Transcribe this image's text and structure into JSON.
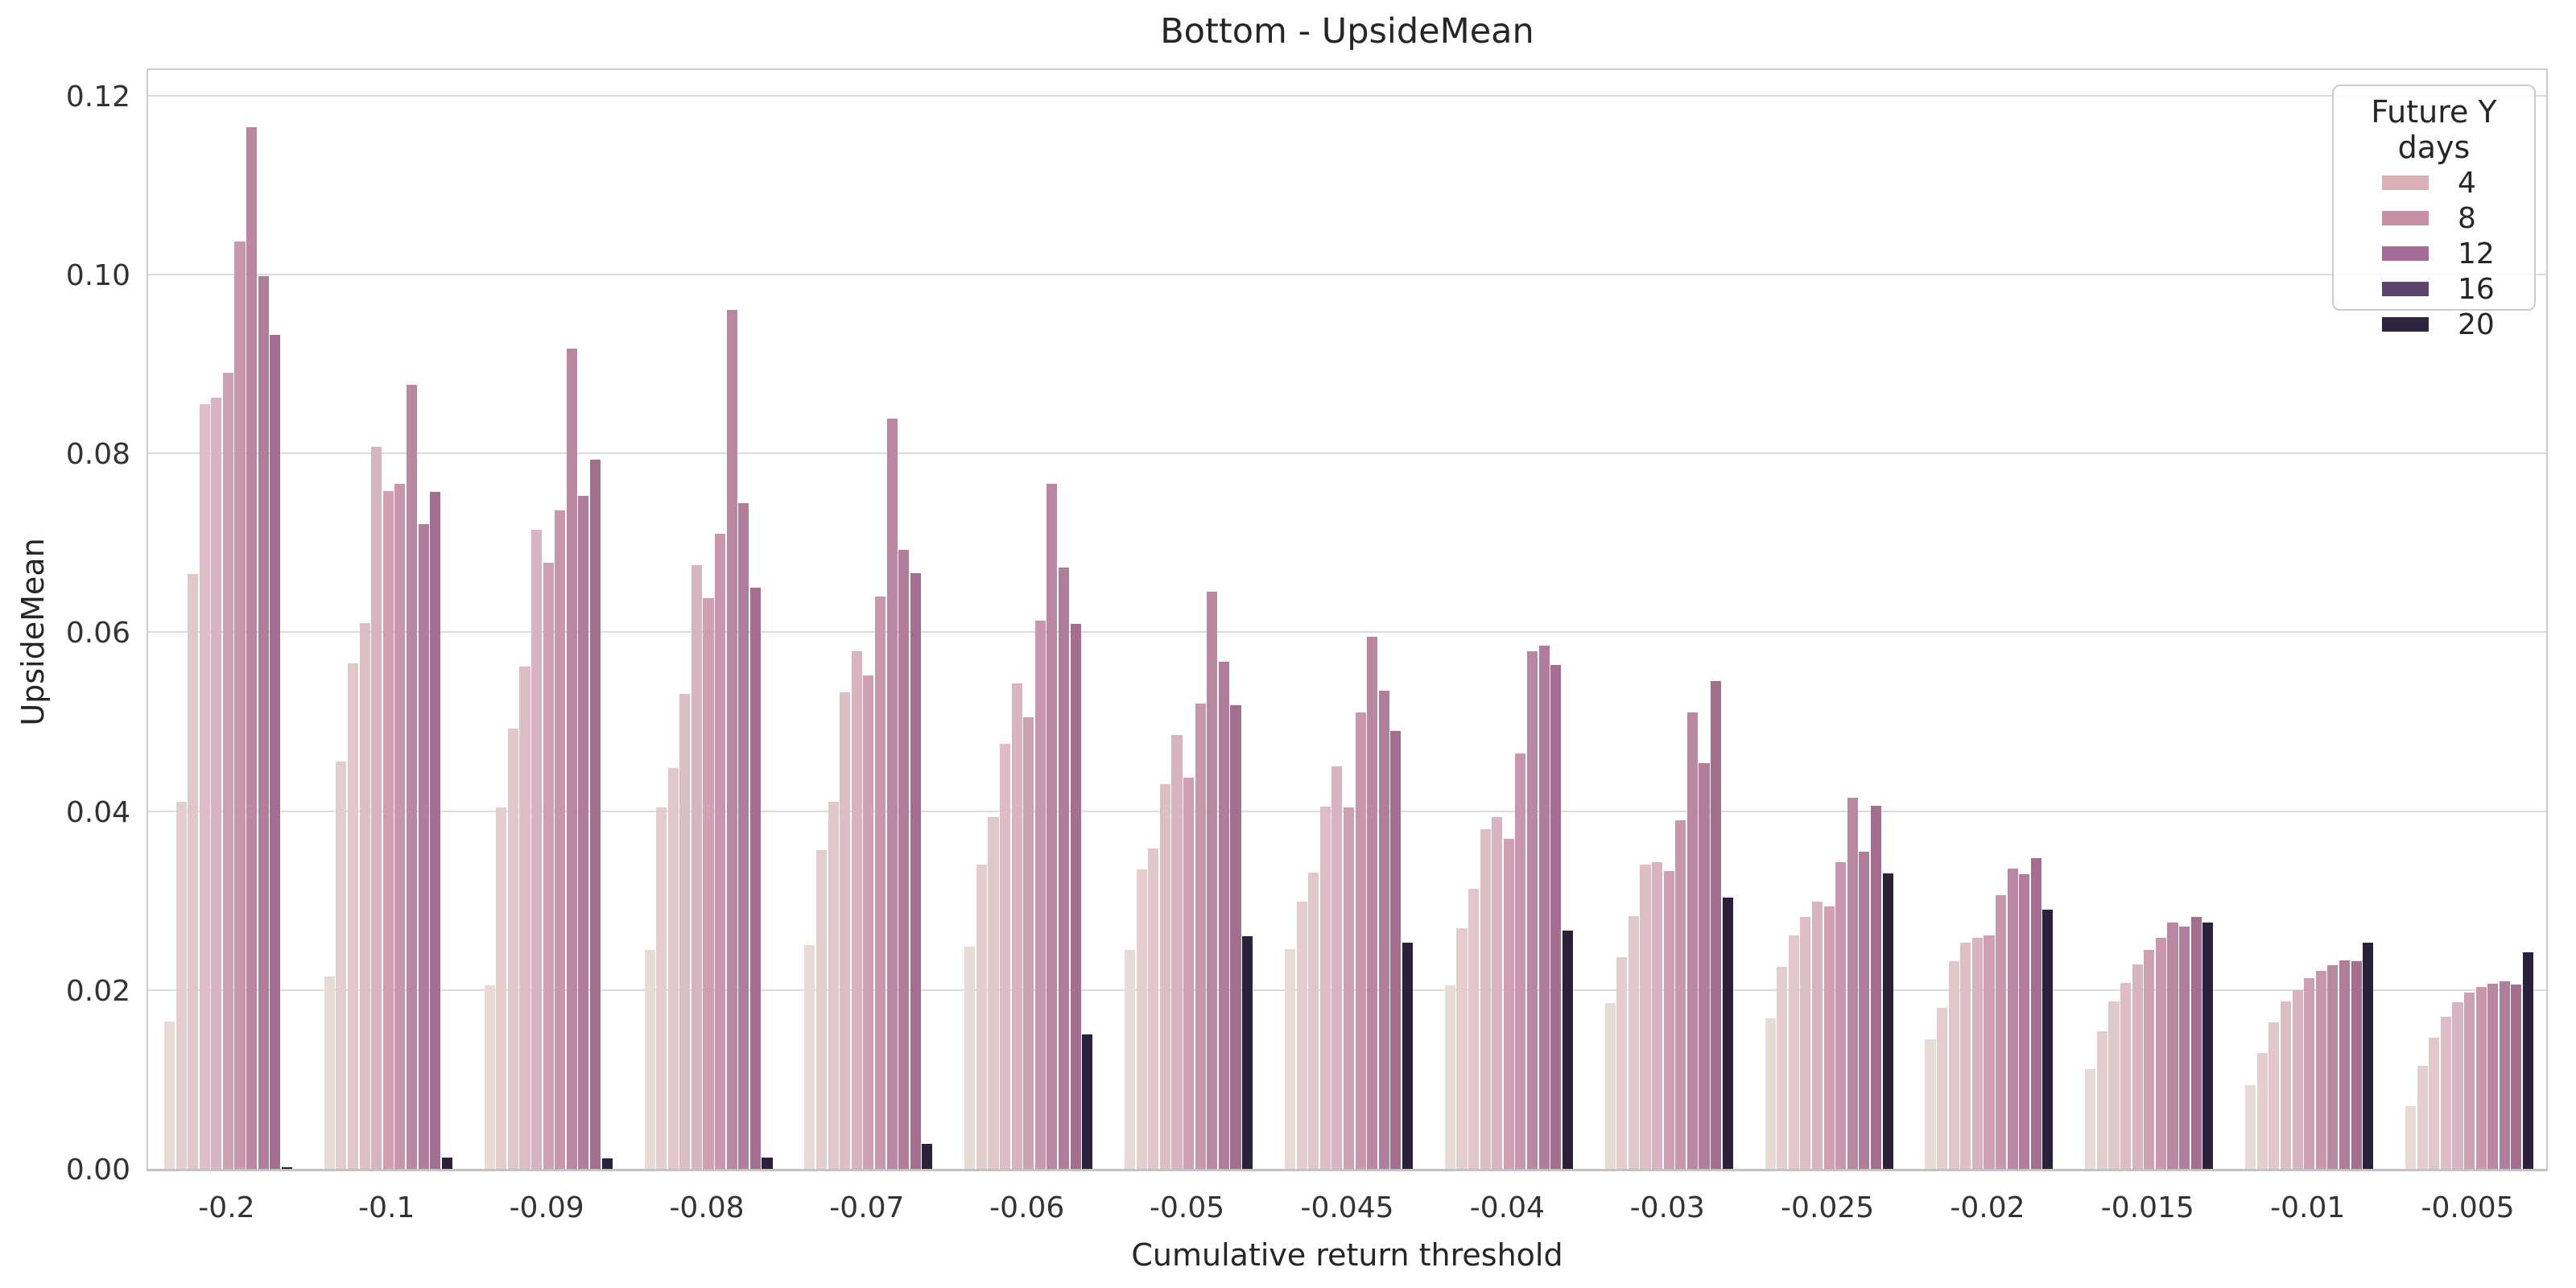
{
  "title": "Bottom - UpsideMean",
  "xlabel": "Cumulative return threshold",
  "ylabel": "UpsideMean",
  "legend": {
    "title": "Future Y days",
    "entries": [
      {
        "label": "4",
        "color": "#d9afb8"
      },
      {
        "label": "8",
        "color": "#c48ea5"
      },
      {
        "label": "12",
        "color": "#a56d96"
      },
      {
        "label": "16",
        "color": "#5d446e"
      },
      {
        "label": "20",
        "color": "#2f243e"
      }
    ]
  },
  "y_ticks": [
    "0.00",
    "0.02",
    "0.04",
    "0.06",
    "0.08",
    "0.10",
    "0.12"
  ],
  "chart_data": {
    "type": "bar",
    "title": "Bottom - UpsideMean",
    "xlabel": "Cumulative return threshold",
    "ylabel": "UpsideMean",
    "ylim": [
      0,
      0.1233
    ],
    "grid": true,
    "legend_position": "upper right",
    "legend_title": "Future Y days",
    "legend_labels": [
      4,
      8,
      12,
      16,
      20
    ],
    "bars_per_group": 11,
    "bar_colors": [
      "#e8dad5",
      "#e4cecd",
      "#e0c7ca",
      "#ddbec5",
      "#d8b4c0",
      "#cfa0b4",
      "#c896ad",
      "#ba87a3",
      "#b17d9c",
      "#a46e91",
      "#2b213a"
    ],
    "categories": [
      "-0.2",
      "-0.1",
      "-0.09",
      "-0.08",
      "-0.07",
      "-0.06",
      "-0.05",
      "-0.045",
      "-0.04",
      "-0.03",
      "-0.025",
      "-0.02",
      "-0.015",
      "-0.01",
      "-0.005"
    ],
    "groups": [
      {
        "threshold": "-0.2",
        "values": [
          0.0165,
          0.041,
          0.0665,
          0.0855,
          0.0862,
          0.089,
          0.1037,
          0.1165,
          0.0998,
          0.0932,
          0.0002
        ]
      },
      {
        "threshold": "-0.1",
        "values": [
          0.0215,
          0.0455,
          0.0565,
          0.061,
          0.0807,
          0.0758,
          0.0766,
          0.0877,
          0.0721,
          0.0757,
          0.0013
        ]
      },
      {
        "threshold": "-0.09",
        "values": [
          0.0205,
          0.0404,
          0.0492,
          0.0562,
          0.0715,
          0.0678,
          0.0736,
          0.0917,
          0.0752,
          0.0793,
          0.0012
        ]
      },
      {
        "threshold": "-0.08",
        "values": [
          0.0245,
          0.0404,
          0.0448,
          0.0531,
          0.0675,
          0.0638,
          0.071,
          0.096,
          0.0744,
          0.065,
          0.0013
        ]
      },
      {
        "threshold": "-0.07",
        "values": [
          0.025,
          0.0356,
          0.041,
          0.0533,
          0.0579,
          0.0552,
          0.064,
          0.0839,
          0.0692,
          0.0666,
          0.0028
        ]
      },
      {
        "threshold": "-0.06",
        "values": [
          0.0248,
          0.034,
          0.0393,
          0.0475,
          0.0543,
          0.0505,
          0.0613,
          0.0766,
          0.0672,
          0.0609,
          0.015
        ]
      },
      {
        "threshold": "-0.05",
        "values": [
          0.0245,
          0.0335,
          0.0358,
          0.043,
          0.0485,
          0.0437,
          0.052,
          0.0645,
          0.0567,
          0.0518,
          0.026
        ]
      },
      {
        "threshold": "-0.045",
        "values": [
          0.0246,
          0.0299,
          0.0331,
          0.0405,
          0.045,
          0.0404,
          0.051,
          0.0595,
          0.0535,
          0.049,
          0.0253
        ]
      },
      {
        "threshold": "-0.04",
        "values": [
          0.0205,
          0.0269,
          0.0313,
          0.038,
          0.0393,
          0.0369,
          0.0464,
          0.0579,
          0.0585,
          0.0563,
          0.0266
        ]
      },
      {
        "threshold": "-0.03",
        "values": [
          0.0185,
          0.0237,
          0.0283,
          0.034,
          0.0343,
          0.0333,
          0.039,
          0.051,
          0.0454,
          0.0545,
          0.0303
        ]
      },
      {
        "threshold": "-0.025",
        "values": [
          0.0168,
          0.0226,
          0.0261,
          0.0282,
          0.0299,
          0.0293,
          0.0343,
          0.0415,
          0.0355,
          0.0406,
          0.033
        ]
      },
      {
        "threshold": "-0.02",
        "values": [
          0.0145,
          0.018,
          0.0232,
          0.0253,
          0.0258,
          0.0261,
          0.0306,
          0.0336,
          0.0329,
          0.0347,
          0.029
        ]
      },
      {
        "threshold": "-0.015",
        "values": [
          0.0112,
          0.0154,
          0.0187,
          0.0208,
          0.0229,
          0.0245,
          0.0258,
          0.0275,
          0.0271,
          0.0282,
          0.0275
        ]
      },
      {
        "threshold": "-0.01",
        "values": [
          0.0094,
          0.013,
          0.0164,
          0.0187,
          0.02,
          0.0213,
          0.0221,
          0.0228,
          0.0233,
          0.0232,
          0.0253
        ]
      },
      {
        "threshold": "-0.005",
        "values": [
          0.007,
          0.0115,
          0.0147,
          0.017,
          0.0186,
          0.0197,
          0.0203,
          0.0207,
          0.021,
          0.0206,
          0.0242
        ]
      }
    ]
  }
}
